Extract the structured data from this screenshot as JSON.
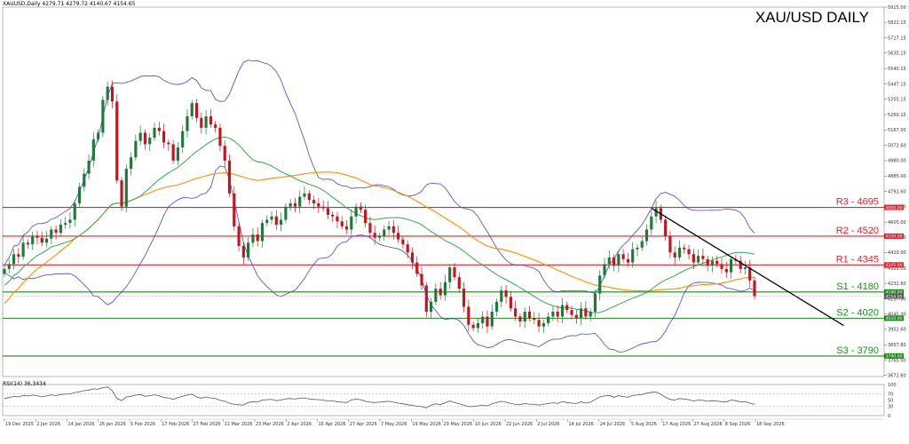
{
  "header": {
    "symbol_info": "XAUUSD,Daily  4279.71 4279.72 4140.67 4154.65",
    "title": "XAU/USD DAILY"
  },
  "chart_data": {
    "type": "candlestick",
    "title": "XAU/USD DAILY",
    "ylim": [
      3665,
      5915
    ],
    "price_ticks": [
      "5915.00",
      "5822.15",
      "5727.15",
      "5635.15",
      "5540.15",
      "5447.15",
      "5355.15",
      "5260.15",
      "5167.00",
      "5072.60",
      "4980.00",
      "4885.00",
      "4792.60",
      "4700.00",
      "4605.00",
      "4512.60",
      "4420.00",
      "4325.00",
      "4232.60",
      "4137.60",
      "4045.00",
      "3952.60",
      "3857.60",
      "3765.00",
      "3672.60"
    ],
    "x_ticks": [
      "19 Dec 2025",
      "2 Jan 2026",
      "14 Jan 2026",
      "26 Jan 2026",
      "5 Feb 2026",
      "17 Feb 2026",
      "27 Feb 2026",
      "11 Mar 2026",
      "23 Mar 2026",
      "2 Apr 2026",
      "15 Apr 2026",
      "27 Apr 2026",
      "7 May 2026",
      "19 May 2026",
      "29 May 2026",
      "10 Jun 2026",
      "22 Jun 2026",
      "2 Jul 2026",
      "14 Jul 2026",
      "24 Jul 2026",
      "5 Aug 2026",
      "17 Aug 2026",
      "27 Aug 2026",
      "8 Sep 2026",
      "18 Sep 2026"
    ],
    "levels": [
      {
        "label": "R3 - 4695",
        "value": 4695,
        "tag": "4695.00",
        "color": "#e8202a"
      },
      {
        "label": "R2 - 4520",
        "value": 4520,
        "tag": "4520.00",
        "color": "#e8202a"
      },
      {
        "label": "R1 - 4345",
        "value": 4345,
        "tag": "4345.00",
        "color": "#e8202a"
      },
      {
        "label": "S1 - 4180",
        "value": 4180,
        "tag": "4180.00",
        "color": "#1a8a1a"
      },
      {
        "label": "S2 - 4020",
        "value": 4020,
        "tag": "4020.00",
        "color": "#1a8a1a"
      },
      {
        "label": "S3 - 3790",
        "value": 3790,
        "tag": "3790.00",
        "color": "#1a8a1a"
      }
    ],
    "current_price": {
      "value": 4154.65,
      "tag": "4154.65"
    },
    "series_closes": [
      4320,
      4350,
      4410,
      4395,
      4480,
      4470,
      4520,
      4510,
      4480,
      4505,
      4560,
      4540,
      4590,
      4600,
      4620,
      4720,
      4820,
      4900,
      4980,
      5110,
      5150,
      5350,
      5430,
      5340,
      4860,
      4700,
      4930,
      5000,
      5100,
      5150,
      5080,
      5120,
      5180,
      5160,
      5090,
      5080,
      4980,
      5060,
      5160,
      5250,
      5330,
      5240,
      5180,
      5250,
      5200,
      5180,
      5070,
      4980,
      4780,
      4580,
      4460,
      4390,
      4480,
      4530,
      4490,
      4600,
      4620,
      4640,
      4590,
      4620,
      4700,
      4720,
      4700,
      4760,
      4780,
      4740,
      4720,
      4700,
      4690,
      4650,
      4640,
      4610,
      4580,
      4560,
      4640,
      4700,
      4680,
      4600,
      4540,
      4510,
      4520,
      4560,
      4580,
      4540,
      4500,
      4470,
      4420,
      4360,
      4290,
      4220,
      4060,
      4120,
      4200,
      4160,
      4240,
      4330,
      4270,
      4200,
      4090,
      3980,
      3960,
      3990,
      4030,
      3970,
      4060,
      4120,
      4190,
      4150,
      4080,
      4030,
      4000,
      4060,
      4020,
      4010,
      3970,
      3990,
      4030,
      4060,
      4030,
      4100,
      4070,
      4040,
      4020,
      4080,
      4030,
      4060,
      4170,
      4280,
      4350,
      4390,
      4340,
      4410,
      4380,
      4360,
      4440,
      4450,
      4490,
      4560,
      4640,
      4690,
      4620,
      4520,
      4420,
      4390,
      4450,
      4440,
      4410,
      4360,
      4400,
      4380,
      4340,
      4370,
      4350,
      4320,
      4300,
      4380,
      4370,
      4320,
      4330,
      4250,
      4154.65
    ],
    "trendline": {
      "from_index": 138,
      "from_value": 4690,
      "to_index": 171,
      "to_value": 4115
    },
    "rsi": {
      "label": "RSI(14) 36.3434",
      "value": 36.3434,
      "ticks": [
        "100",
        "70",
        "50",
        "30",
        "0"
      ],
      "series": [
        55,
        58,
        62,
        60,
        65,
        63,
        66,
        64,
        60,
        63,
        67,
        64,
        68,
        69,
        70,
        74,
        77,
        80,
        82,
        86,
        85,
        90,
        92,
        80,
        55,
        48,
        60,
        62,
        66,
        68,
        62,
        64,
        67,
        64,
        58,
        57,
        52,
        58,
        62,
        66,
        69,
        60,
        56,
        60,
        57,
        55,
        49,
        46,
        40,
        36,
        35,
        34,
        42,
        45,
        43,
        50,
        51,
        52,
        48,
        50,
        54,
        55,
        53,
        56,
        57,
        53,
        52,
        51,
        50,
        47,
        47,
        45,
        43,
        42,
        50,
        53,
        51,
        46,
        43,
        42,
        43,
        45,
        46,
        43,
        40,
        38,
        35,
        33,
        30,
        29,
        25,
        33,
        38,
        35,
        41,
        47,
        42,
        38,
        33,
        29,
        29,
        31,
        34,
        31,
        38,
        42,
        46,
        43,
        39,
        36,
        35,
        39,
        37,
        36,
        34,
        36,
        39,
        41,
        39,
        45,
        42,
        40,
        39,
        44,
        40,
        43,
        52,
        60,
        63,
        65,
        59,
        64,
        61,
        59,
        65,
        66,
        68,
        72,
        75,
        76,
        68,
        59,
        52,
        50,
        55,
        53,
        51,
        47,
        50,
        49,
        46,
        48,
        47,
        45,
        44,
        50,
        48,
        44,
        45,
        40,
        36.3434
      ]
    }
  },
  "colors": {
    "bull": "#1f7a3a",
    "bear": "#c4141c",
    "bands": "#4545c8",
    "ma_slow": "#ff8c00",
    "ma_fast": "#2fa84f",
    "trendline": "#000000"
  }
}
